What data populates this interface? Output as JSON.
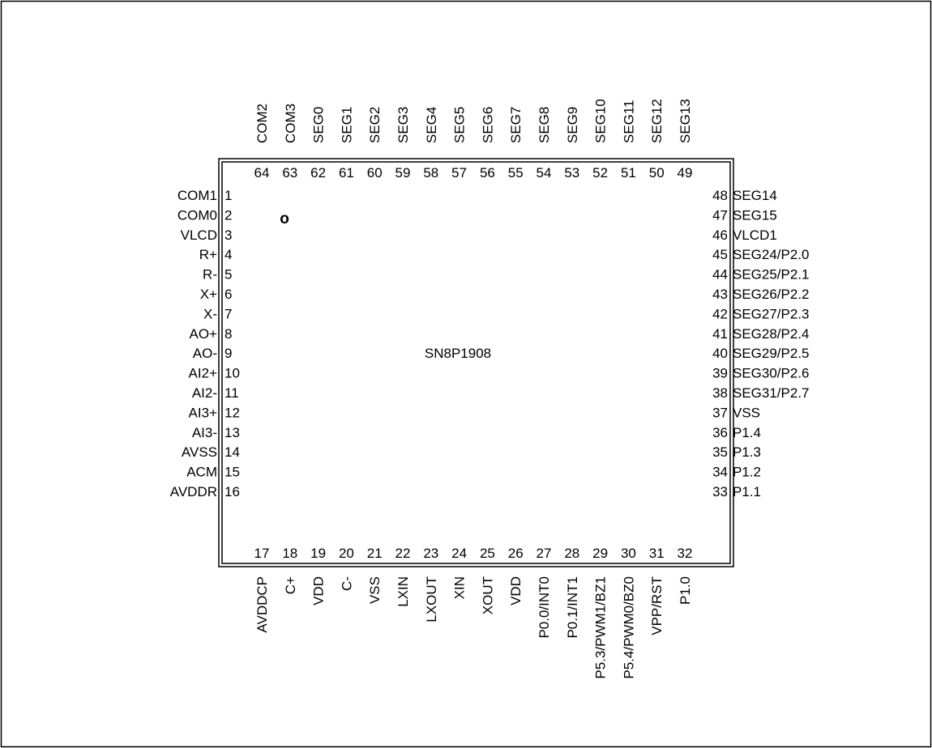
{
  "chip_name": "SN8P1908",
  "pin1_marker": "o",
  "colors": {
    "ink": "#000000",
    "paper": "#ffffff"
  },
  "pins": {
    "left": [
      {
        "num": "1",
        "name": "COM1"
      },
      {
        "num": "2",
        "name": "COM0"
      },
      {
        "num": "3",
        "name": "VLCD"
      },
      {
        "num": "4",
        "name": "R+"
      },
      {
        "num": "5",
        "name": "R-"
      },
      {
        "num": "6",
        "name": "X+"
      },
      {
        "num": "7",
        "name": "X-"
      },
      {
        "num": "8",
        "name": "AO+"
      },
      {
        "num": "9",
        "name": "AO-"
      },
      {
        "num": "10",
        "name": "AI2+"
      },
      {
        "num": "11",
        "name": "AI2-"
      },
      {
        "num": "12",
        "name": "AI3+"
      },
      {
        "num": "13",
        "name": "AI3-"
      },
      {
        "num": "14",
        "name": "AVSS"
      },
      {
        "num": "15",
        "name": "ACM"
      },
      {
        "num": "16",
        "name": "AVDDR"
      }
    ],
    "bottom": [
      {
        "num": "17",
        "name": "AVDDCP"
      },
      {
        "num": "18",
        "name": "C+"
      },
      {
        "num": "19",
        "name": "VDD"
      },
      {
        "num": "20",
        "name": "C-"
      },
      {
        "num": "21",
        "name": "VSS"
      },
      {
        "num": "22",
        "name": "LXIN"
      },
      {
        "num": "23",
        "name": "LXOUT"
      },
      {
        "num": "24",
        "name": "XIN"
      },
      {
        "num": "25",
        "name": "XOUT"
      },
      {
        "num": "26",
        "name": "VDD"
      },
      {
        "num": "27",
        "name": "P0.0/INT0"
      },
      {
        "num": "28",
        "name": "P0.1/INT1"
      },
      {
        "num": "29",
        "name": "P5.3/PWM1/BZ1"
      },
      {
        "num": "30",
        "name": "P5.4/PWM0/BZ0"
      },
      {
        "num": "31",
        "name": "VPP/RST"
      },
      {
        "num": "32",
        "name": "P1.0"
      }
    ],
    "right": [
      {
        "num": "48",
        "name": "SEG14"
      },
      {
        "num": "47",
        "name": "SEG15"
      },
      {
        "num": "46",
        "name": "VLCD1"
      },
      {
        "num": "45",
        "name": "SEG24/P2.0"
      },
      {
        "num": "44",
        "name": "SEG25/P2.1"
      },
      {
        "num": "43",
        "name": "SEG26/P2.2"
      },
      {
        "num": "42",
        "name": "SEG27/P2.3"
      },
      {
        "num": "41",
        "name": "SEG28/P2.4"
      },
      {
        "num": "40",
        "name": "SEG29/P2.5"
      },
      {
        "num": "39",
        "name": "SEG30/P2.6"
      },
      {
        "num": "38",
        "name": "SEG31/P2.7"
      },
      {
        "num": "37",
        "name": "VSS"
      },
      {
        "num": "36",
        "name": "P1.4"
      },
      {
        "num": "35",
        "name": "P1.3"
      },
      {
        "num": "34",
        "name": "P1.2"
      },
      {
        "num": "33",
        "name": "P1.1"
      }
    ],
    "top": [
      {
        "num": "64",
        "name": "COM2"
      },
      {
        "num": "63",
        "name": "COM3"
      },
      {
        "num": "62",
        "name": "SEG0"
      },
      {
        "num": "61",
        "name": "SEG1"
      },
      {
        "num": "60",
        "name": "SEG2"
      },
      {
        "num": "59",
        "name": "SEG3"
      },
      {
        "num": "58",
        "name": "SEG4"
      },
      {
        "num": "57",
        "name": "SEG5"
      },
      {
        "num": "56",
        "name": "SEG6"
      },
      {
        "num": "55",
        "name": "SEG7"
      },
      {
        "num": "54",
        "name": "SEG8"
      },
      {
        "num": "53",
        "name": "SEG9"
      },
      {
        "num": "52",
        "name": "SEG10"
      },
      {
        "num": "51",
        "name": "SEG11"
      },
      {
        "num": "50",
        "name": "SEG12"
      },
      {
        "num": "49",
        "name": "SEG13"
      }
    ]
  }
}
